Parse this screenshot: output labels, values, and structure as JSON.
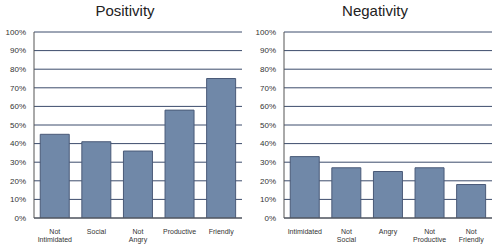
{
  "chart_data": [
    {
      "type": "bar",
      "title": "Positivity",
      "categories": [
        "Not Intimidated",
        "Social",
        "Not Angry",
        "Productive",
        "Friendly"
      ],
      "values": [
        45,
        41,
        36,
        58,
        75
      ],
      "color": "#7088a8",
      "ylim": [
        0,
        100
      ],
      "yticks": [
        {
          "value": 0,
          "label": "0%"
        },
        {
          "value": 10,
          "label": "10%"
        },
        {
          "value": 20,
          "label": "20%"
        },
        {
          "value": 30,
          "label": "30%"
        },
        {
          "value": 40,
          "label": "40%"
        },
        {
          "value": 50,
          "label": "50%"
        },
        {
          "value": 60,
          "label": "60%"
        },
        {
          "value": 70,
          "label": "70%"
        },
        {
          "value": 80,
          "label": "80%"
        },
        {
          "value": 90,
          "label": "90%"
        },
        {
          "value": 100,
          "label": "100%"
        }
      ],
      "grid": true
    },
    {
      "type": "bar",
      "title": "Negativity",
      "categories": [
        "Intimidated",
        "Not Social",
        "Angry",
        "Not Productive",
        "Not Friendly"
      ],
      "values": [
        33,
        27,
        25,
        27,
        18
      ],
      "color": "#7088a8",
      "ylim": [
        0,
        100
      ],
      "yticks": [
        {
          "value": 0,
          "label": "0%"
        },
        {
          "value": 10,
          "label": "10%"
        },
        {
          "value": 20,
          "label": "20%"
        },
        {
          "value": 30,
          "label": "30%"
        },
        {
          "value": 40,
          "label": "40%"
        },
        {
          "value": 50,
          "label": "50%"
        },
        {
          "value": 60,
          "label": "60%"
        },
        {
          "value": 70,
          "label": "70%"
        },
        {
          "value": 80,
          "label": "80%"
        },
        {
          "value": 90,
          "label": "90%"
        },
        {
          "value": 100,
          "label": "100%"
        }
      ],
      "grid": true
    }
  ]
}
